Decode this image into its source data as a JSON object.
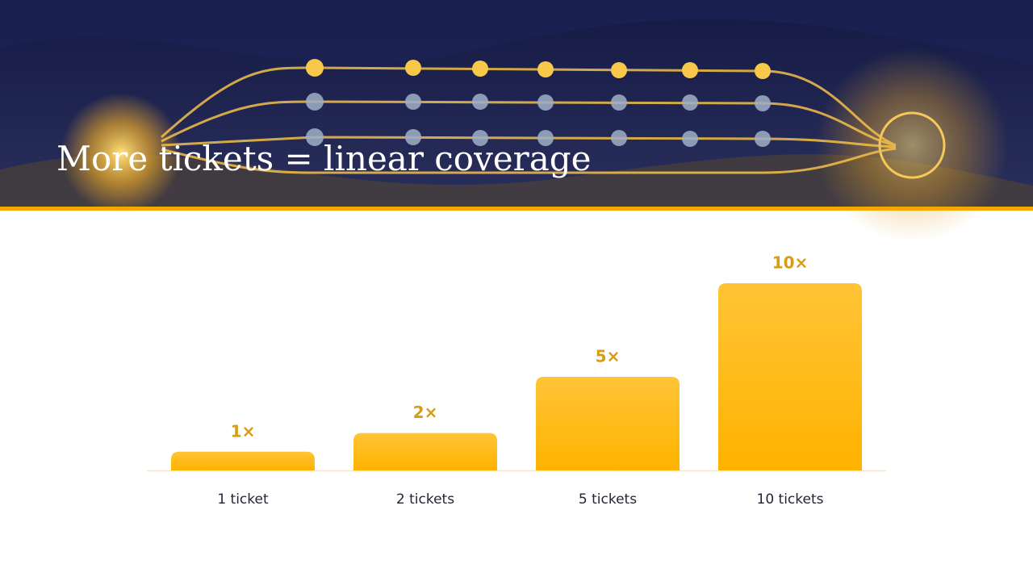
{
  "chart_data": {
    "type": "bar",
    "title": "More tickets = linear coverage",
    "categories": [
      "1 ticket",
      "2 tickets",
      "5 tickets",
      "10 tickets"
    ],
    "values": [
      1,
      2,
      5,
      10
    ],
    "value_labels": [
      "1×",
      "2×",
      "5×",
      "10×"
    ],
    "color": "#ffb81c"
  }
}
